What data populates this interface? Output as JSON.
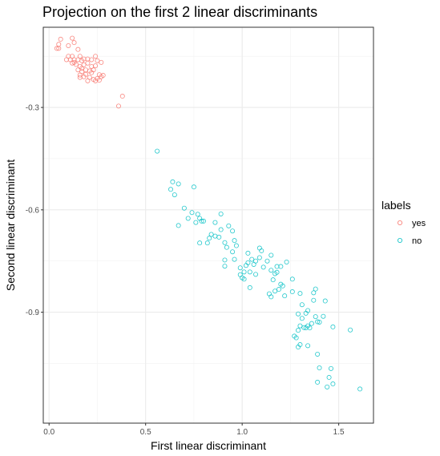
{
  "chart_data": {
    "type": "scatter",
    "title": "Projection on the first 2 linear discriminants",
    "xlabel": "First linear discriminant",
    "ylabel": "Second linear discriminant",
    "xlim": [
      -0.03,
      1.68
    ],
    "ylim": [
      -1.225,
      -0.065
    ],
    "x_ticks": [
      0.0,
      0.5,
      1.0,
      1.5
    ],
    "x_tick_labels": [
      "0.0",
      "0.5",
      "1.0",
      "1.5"
    ],
    "y_ticks": [
      -0.3,
      -0.6,
      -0.9
    ],
    "y_tick_labels": [
      "-0.3",
      "-0.6",
      "-0.9"
    ],
    "grid": true,
    "legend_title": "labels",
    "legend_position": "right",
    "series": [
      {
        "name": "yes",
        "color": "#F8766D",
        "points": [
          [
            0.04,
            -0.127
          ],
          [
            0.05,
            -0.115
          ],
          [
            0.06,
            -0.1
          ],
          [
            0.05,
            -0.127
          ],
          [
            0.1,
            -0.119
          ],
          [
            0.12,
            -0.097
          ],
          [
            0.13,
            -0.11
          ],
          [
            0.15,
            -0.13
          ],
          [
            0.1,
            -0.15
          ],
          [
            0.12,
            -0.15
          ],
          [
            0.13,
            -0.16
          ],
          [
            0.15,
            -0.16
          ],
          [
            0.16,
            -0.15
          ],
          [
            0.18,
            -0.158
          ],
          [
            0.2,
            -0.158
          ],
          [
            0.22,
            -0.16
          ],
          [
            0.24,
            -0.15
          ],
          [
            0.25,
            -0.163
          ],
          [
            0.27,
            -0.168
          ],
          [
            0.12,
            -0.17
          ],
          [
            0.14,
            -0.174
          ],
          [
            0.16,
            -0.18
          ],
          [
            0.17,
            -0.185
          ],
          [
            0.18,
            -0.175
          ],
          [
            0.2,
            -0.17
          ],
          [
            0.22,
            -0.18
          ],
          [
            0.24,
            -0.178
          ],
          [
            0.23,
            -0.19
          ],
          [
            0.21,
            -0.193
          ],
          [
            0.19,
            -0.19
          ],
          [
            0.17,
            -0.195
          ],
          [
            0.16,
            -0.205
          ],
          [
            0.18,
            -0.21
          ],
          [
            0.21,
            -0.212
          ],
          [
            0.23,
            -0.218
          ],
          [
            0.25,
            -0.215
          ],
          [
            0.27,
            -0.21
          ],
          [
            0.28,
            -0.206
          ],
          [
            0.26,
            -0.22
          ],
          [
            0.24,
            -0.222
          ],
          [
            0.2,
            -0.222
          ],
          [
            0.16,
            -0.212
          ],
          [
            0.13,
            -0.168
          ],
          [
            0.19,
            -0.203
          ],
          [
            0.22,
            -0.198
          ],
          [
            0.26,
            -0.204
          ],
          [
            0.15,
            -0.19
          ],
          [
            0.11,
            -0.16
          ],
          [
            0.09,
            -0.16
          ],
          [
            0.17,
            -0.163
          ],
          [
            0.38,
            -0.267
          ],
          [
            0.36,
            -0.296
          ]
        ]
      },
      {
        "name": "no",
        "color": "#00BFC4",
        "points": [
          [
            0.56,
            -0.428
          ],
          [
            0.64,
            -0.518
          ],
          [
            0.67,
            -0.524
          ],
          [
            0.63,
            -0.54
          ],
          [
            0.75,
            -0.533
          ],
          [
            0.65,
            -0.556
          ],
          [
            0.7,
            -0.595
          ],
          [
            0.74,
            -0.608
          ],
          [
            0.77,
            -0.613
          ],
          [
            0.72,
            -0.625
          ],
          [
            0.78,
            -0.625
          ],
          [
            0.79,
            -0.633
          ],
          [
            0.8,
            -0.633
          ],
          [
            0.76,
            -0.637
          ],
          [
            0.67,
            -0.646
          ],
          [
            0.89,
            -0.612
          ],
          [
            0.86,
            -0.637
          ],
          [
            0.93,
            -0.647
          ],
          [
            0.89,
            -0.658
          ],
          [
            0.95,
            -0.662
          ],
          [
            0.84,
            -0.672
          ],
          [
            0.86,
            -0.677
          ],
          [
            0.88,
            -0.68
          ],
          [
            0.83,
            -0.683
          ],
          [
            0.82,
            -0.697
          ],
          [
            0.78,
            -0.697
          ],
          [
            0.91,
            -0.696
          ],
          [
            0.96,
            -0.69
          ],
          [
            0.97,
            -0.705
          ],
          [
            0.92,
            -0.71
          ],
          [
            0.95,
            -0.723
          ],
          [
            1.03,
            -0.727
          ],
          [
            1.09,
            -0.712
          ],
          [
            1.1,
            -0.72
          ],
          [
            1.15,
            -0.733
          ],
          [
            1.13,
            -0.75
          ],
          [
            1.09,
            -0.74
          ],
          [
            1.05,
            -0.745
          ],
          [
            1.07,
            -0.75
          ],
          [
            1.03,
            -0.755
          ],
          [
            0.96,
            -0.745
          ],
          [
            0.91,
            -0.747
          ],
          [
            1.02,
            -0.763
          ],
          [
            1.06,
            -0.76
          ],
          [
            1.11,
            -0.768
          ],
          [
            1.18,
            -0.766
          ],
          [
            1.2,
            -0.766
          ],
          [
            1.15,
            -0.777
          ],
          [
            1.23,
            -0.753
          ],
          [
            0.99,
            -0.77
          ],
          [
            0.91,
            -0.765
          ],
          [
            1.01,
            -0.782
          ],
          [
            1.04,
            -0.782
          ],
          [
            0.99,
            -0.79
          ],
          [
            1.0,
            -0.799
          ],
          [
            1.07,
            -0.789
          ],
          [
            1.17,
            -0.787
          ],
          [
            1.18,
            -0.783
          ],
          [
            1.16,
            -0.805
          ],
          [
            1.26,
            -0.803
          ],
          [
            1.01,
            -0.803
          ],
          [
            1.04,
            -0.828
          ],
          [
            1.14,
            -0.846
          ],
          [
            1.17,
            -0.838
          ],
          [
            1.19,
            -0.833
          ],
          [
            1.21,
            -0.823
          ],
          [
            1.2,
            -0.818
          ],
          [
            1.22,
            -0.852
          ],
          [
            1.26,
            -0.84
          ],
          [
            1.3,
            -0.845
          ],
          [
            1.37,
            -0.843
          ],
          [
            1.38,
            -0.832
          ],
          [
            1.43,
            -0.867
          ],
          [
            1.37,
            -0.865
          ],
          [
            1.31,
            -0.878
          ],
          [
            1.34,
            -0.895
          ],
          [
            1.33,
            -0.903
          ],
          [
            1.29,
            -0.905
          ],
          [
            1.31,
            -0.918
          ],
          [
            1.38,
            -0.913
          ],
          [
            1.36,
            -0.933
          ],
          [
            1.34,
            -0.94
          ],
          [
            1.33,
            -0.946
          ],
          [
            1.32,
            -0.945
          ],
          [
            1.29,
            -0.953
          ],
          [
            1.3,
            -0.94
          ],
          [
            1.35,
            -0.946
          ],
          [
            1.39,
            -0.928
          ],
          [
            1.4,
            -0.929
          ],
          [
            1.42,
            -0.912
          ],
          [
            1.28,
            -0.975
          ],
          [
            1.27,
            -0.97
          ],
          [
            1.34,
            -0.998
          ],
          [
            1.3,
            -0.995
          ],
          [
            1.29,
            -1.002
          ],
          [
            1.47,
            -0.943
          ],
          [
            1.56,
            -0.952
          ],
          [
            1.39,
            -1.023
          ],
          [
            1.4,
            -1.063
          ],
          [
            1.46,
            -1.065
          ],
          [
            1.45,
            -1.091
          ],
          [
            1.39,
            -1.105
          ],
          [
            1.44,
            -1.119
          ],
          [
            1.47,
            -1.11
          ],
          [
            1.61,
            -1.125
          ],
          [
            1.15,
            -0.855
          ]
        ]
      }
    ]
  }
}
